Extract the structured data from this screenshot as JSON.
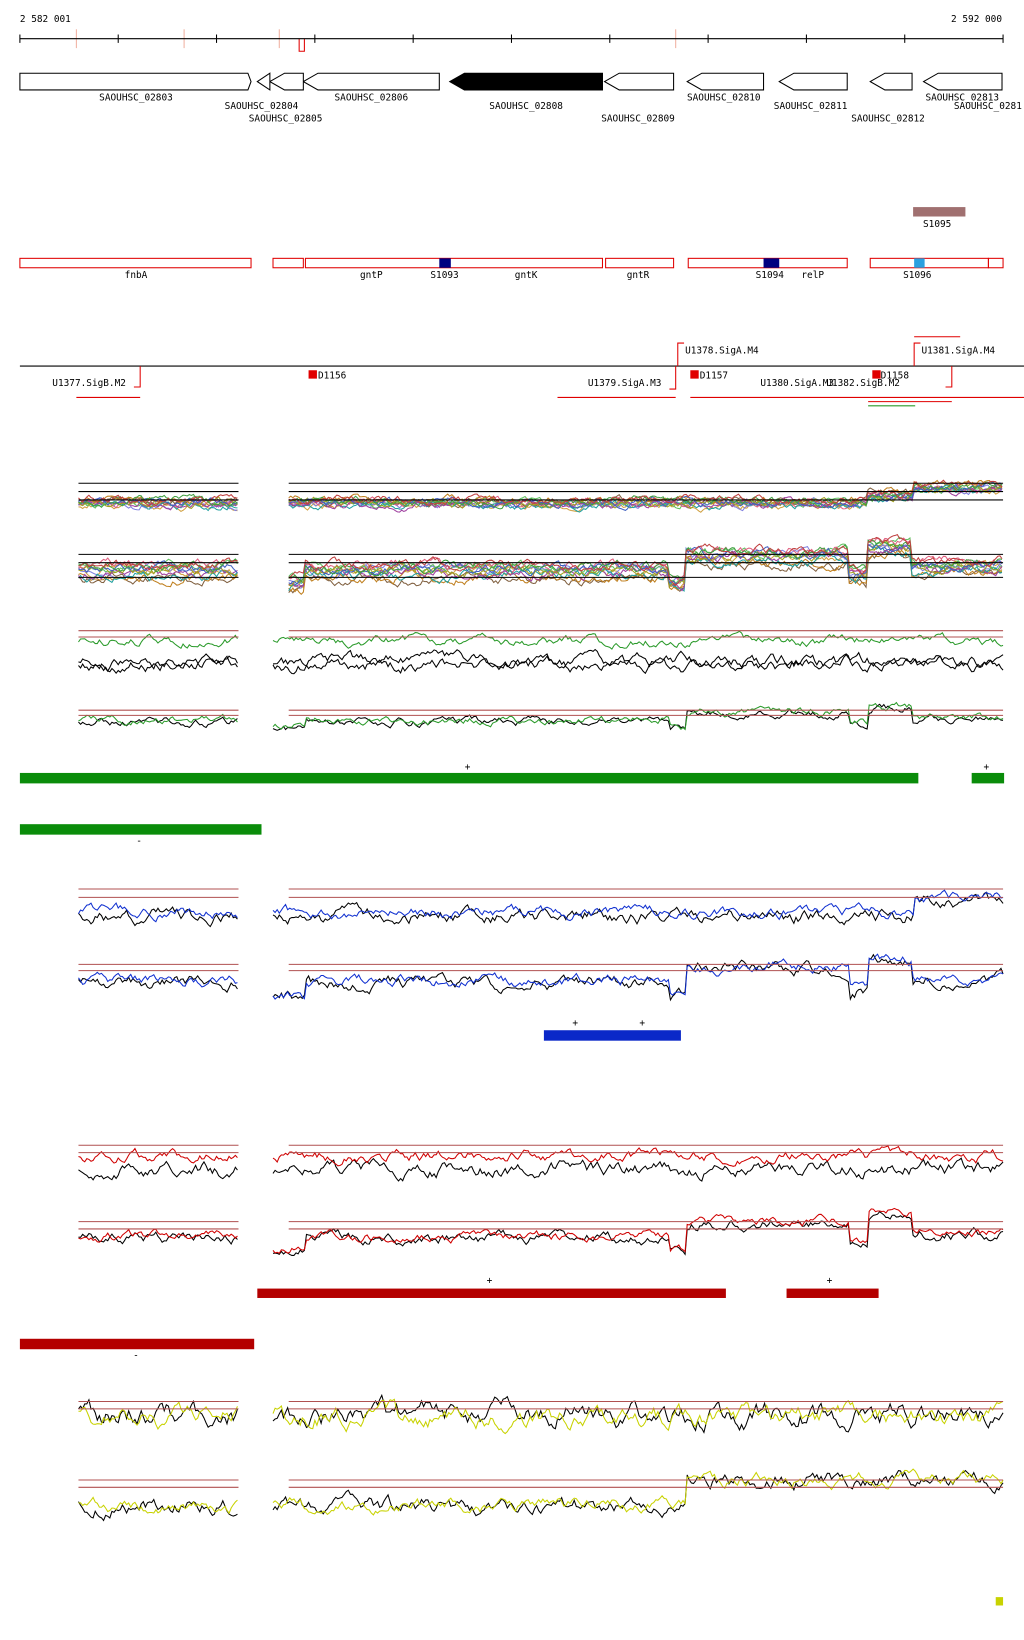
{
  "scale": {
    "start": "2 582 001",
    "end": "2 592 000"
  },
  "genes": [
    {
      "label": "SAOUHSC_02803"
    },
    {
      "label": "SAOUHSC_02804"
    },
    {
      "label": "SAOUHSC_02805"
    },
    {
      "label": "SAOUHSC_02806"
    },
    {
      "label": "SAOUHSC_02808"
    },
    {
      "label": "SAOUHSC_02809"
    },
    {
      "label": "SAOUHSC_02810"
    },
    {
      "label": "SAOUHSC_02811"
    },
    {
      "label": "SAOUHSC_02812"
    },
    {
      "label": "SAOUHSC_02813"
    },
    {
      "label": "SAOUHSC_0281"
    }
  ],
  "features": [
    {
      "label": "fnbA"
    },
    {
      "label": "gntP"
    },
    {
      "label": "S1093"
    },
    {
      "label": "gntK"
    },
    {
      "label": "gntR"
    },
    {
      "label": "S1094"
    },
    {
      "label": "relP"
    },
    {
      "label": "S1096"
    },
    {
      "label": "S1095"
    }
  ],
  "promoters": [
    {
      "label": "U1378.SigA.M4"
    },
    {
      "label": "U1381.SigA.M4"
    },
    {
      "label": "U1377.SigB.M2"
    },
    {
      "label": "D1156"
    },
    {
      "label": "U1379.SigA.M3"
    },
    {
      "label": "D1157"
    },
    {
      "label": "U1380.SigA.M3"
    },
    {
      "label": "U1382.SigB.M2"
    },
    {
      "label": "D1158"
    }
  ],
  "strand_marks": [
    "+",
    "+",
    "-",
    "+",
    "+",
    "+",
    "+",
    "-"
  ]
}
